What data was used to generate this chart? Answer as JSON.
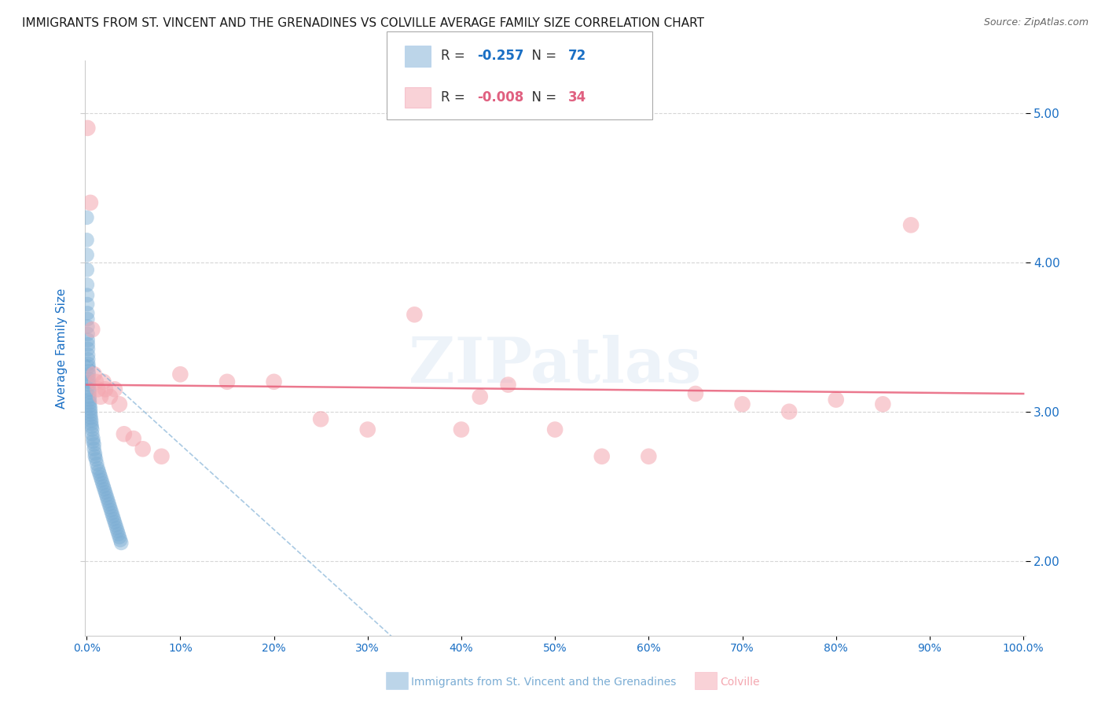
{
  "title": "IMMIGRANTS FROM ST. VINCENT AND THE GRENADINES VS COLVILLE AVERAGE FAMILY SIZE CORRELATION CHART",
  "source": "Source: ZipAtlas.com",
  "ylabel": "Average Family Size",
  "legend_blue_r": "-0.257",
  "legend_blue_n": "72",
  "legend_pink_r": "-0.008",
  "legend_pink_n": "34",
  "legend_blue_label": "Immigrants from St. Vincent and the Grenadines",
  "legend_pink_label": "Colville",
  "ylim": [
    1.5,
    5.35
  ],
  "xlim": [
    -0.002,
    1.002
  ],
  "yticks": [
    2.0,
    3.0,
    4.0,
    5.0
  ],
  "xticks": [
    0.0,
    0.1,
    0.2,
    0.3,
    0.4,
    0.5,
    0.6,
    0.7,
    0.8,
    0.9,
    1.0
  ],
  "blue_scatter_x": [
    0.0002,
    0.0003,
    0.0004,
    0.0005,
    0.0006,
    0.0007,
    0.0008,
    0.0009,
    0.001,
    0.001,
    0.0012,
    0.0013,
    0.0014,
    0.0015,
    0.0016,
    0.0017,
    0.0018,
    0.002,
    0.002,
    0.0022,
    0.0023,
    0.0025,
    0.0026,
    0.0028,
    0.003,
    0.003,
    0.0032,
    0.0033,
    0.0035,
    0.004,
    0.004,
    0.0042,
    0.0045,
    0.005,
    0.005,
    0.0055,
    0.006,
    0.006,
    0.007,
    0.007,
    0.008,
    0.008,
    0.009,
    0.009,
    0.01,
    0.011,
    0.012,
    0.013,
    0.014,
    0.015,
    0.016,
    0.017,
    0.018,
    0.019,
    0.02,
    0.021,
    0.022,
    0.023,
    0.024,
    0.025,
    0.026,
    0.027,
    0.028,
    0.029,
    0.03,
    0.031,
    0.032,
    0.033,
    0.034,
    0.035,
    0.036,
    0.037
  ],
  "blue_scatter_y": [
    4.3,
    4.15,
    4.05,
    3.95,
    3.85,
    3.78,
    3.72,
    3.66,
    3.62,
    3.57,
    3.52,
    3.48,
    3.45,
    3.42,
    3.38,
    3.35,
    3.32,
    3.3,
    3.27,
    3.25,
    3.22,
    3.2,
    3.18,
    3.15,
    3.13,
    3.1,
    3.08,
    3.06,
    3.04,
    3.02,
    3.0,
    2.98,
    2.96,
    2.94,
    2.92,
    2.9,
    2.88,
    2.85,
    2.82,
    2.8,
    2.78,
    2.75,
    2.72,
    2.7,
    2.68,
    2.65,
    2.62,
    2.6,
    2.58,
    2.56,
    2.54,
    2.52,
    2.5,
    2.48,
    2.46,
    2.44,
    2.42,
    2.4,
    2.38,
    2.36,
    2.34,
    2.32,
    2.3,
    2.28,
    2.26,
    2.24,
    2.22,
    2.2,
    2.18,
    2.16,
    2.14,
    2.12
  ],
  "pink_scatter_x": [
    0.001,
    0.004,
    0.006,
    0.008,
    0.01,
    0.012,
    0.015,
    0.018,
    0.02,
    0.025,
    0.03,
    0.035,
    0.04,
    0.05,
    0.06,
    0.08,
    0.1,
    0.15,
    0.2,
    0.25,
    0.3,
    0.35,
    0.4,
    0.42,
    0.45,
    0.5,
    0.55,
    0.6,
    0.65,
    0.7,
    0.75,
    0.8,
    0.85,
    0.88
  ],
  "pink_scatter_y": [
    4.9,
    4.4,
    3.55,
    3.25,
    3.2,
    3.15,
    3.1,
    3.2,
    3.15,
    3.1,
    3.15,
    3.05,
    2.85,
    2.82,
    2.75,
    2.7,
    3.25,
    3.2,
    3.2,
    2.95,
    2.88,
    3.65,
    2.88,
    3.1,
    3.18,
    2.88,
    2.7,
    2.7,
    3.12,
    3.05,
    3.0,
    3.08,
    3.05,
    4.25
  ],
  "blue_line_x": [
    0.0,
    0.5
  ],
  "blue_line_y": [
    3.35,
    0.5
  ],
  "pink_line_x": [
    0.0,
    1.0
  ],
  "pink_line_y": [
    3.18,
    3.12
  ],
  "watermark": "ZIPatlas",
  "background_color": "#ffffff",
  "blue_color": "#7badd4",
  "pink_color": "#f4a7b0",
  "blue_line_color": "#7badd4",
  "pink_line_color": "#e8607a",
  "title_fontsize": 11,
  "source_fontsize": 9,
  "ylabel_color": "#1a6fc4",
  "ytick_color": "#1a6fc4",
  "xtick_color": "#1a6fc4"
}
